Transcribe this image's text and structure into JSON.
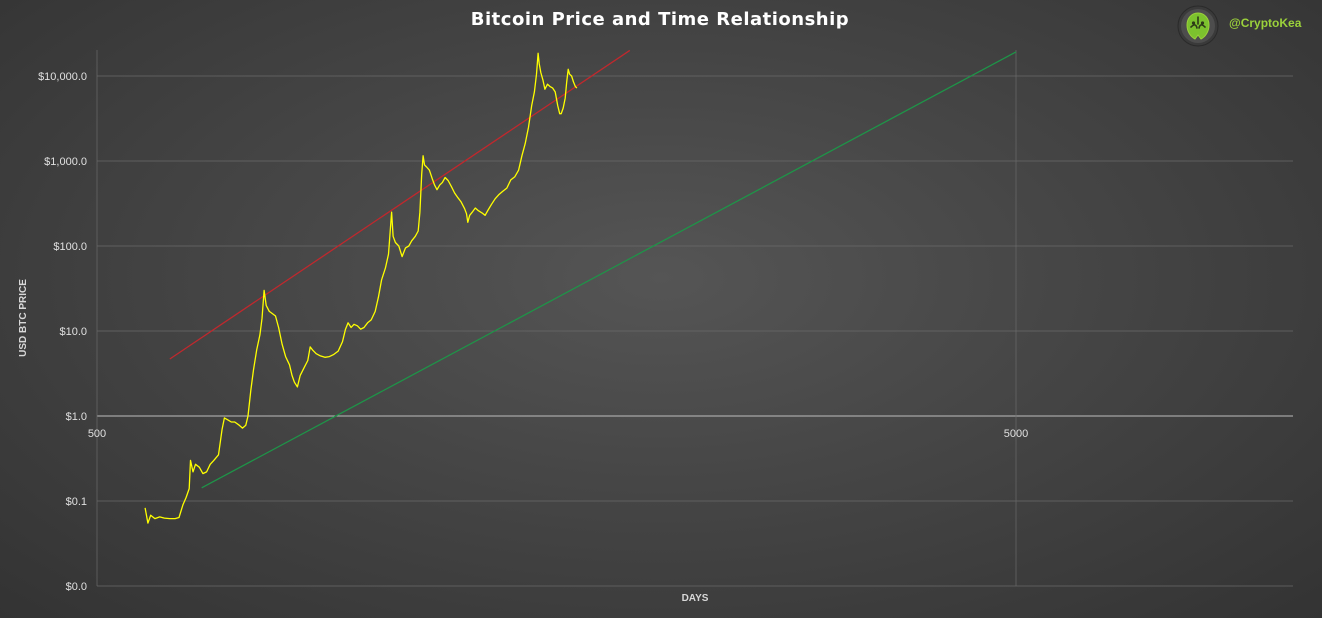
{
  "chart_data": {
    "type": "line",
    "title": "Bitcoin Price and Time Relationship",
    "xlabel": "DAYS",
    "ylabel": "USD BTC PRICE",
    "x_scale": "log",
    "y_scale": "log",
    "x_ticks": [
      {
        "value": 500,
        "label": "500"
      },
      {
        "value": 5000,
        "label": "5000"
      }
    ],
    "y_ticks": [
      {
        "value": 0.01,
        "label": "$0.0"
      },
      {
        "value": 0.1,
        "label": "$0.1"
      },
      {
        "value": 1,
        "label": "$1.0"
      },
      {
        "value": 10,
        "label": "$10.0"
      },
      {
        "value": 100,
        "label": "$100.0"
      },
      {
        "value": 1000,
        "label": "$1,000.0"
      },
      {
        "value": 10000,
        "label": "$10,000.0"
      }
    ],
    "grid": true,
    "series": [
      {
        "color": "#ffff00",
        "points": [
          [
            564,
            0.083
          ],
          [
            568,
            0.055
          ],
          [
            572,
            0.068
          ],
          [
            578,
            0.062
          ],
          [
            585,
            0.065
          ],
          [
            592,
            0.063
          ],
          [
            600,
            0.062
          ],
          [
            608,
            0.062
          ],
          [
            614,
            0.064
          ],
          [
            620,
            0.09
          ],
          [
            625,
            0.11
          ],
          [
            630,
            0.14
          ],
          [
            632,
            0.3
          ],
          [
            636,
            0.22
          ],
          [
            640,
            0.27
          ],
          [
            646,
            0.25
          ],
          [
            652,
            0.21
          ],
          [
            658,
            0.22
          ],
          [
            664,
            0.27
          ],
          [
            670,
            0.3
          ],
          [
            678,
            0.35
          ],
          [
            684,
            0.7
          ],
          [
            688,
            0.95
          ],
          [
            694,
            0.9
          ],
          [
            700,
            0.85
          ],
          [
            706,
            0.85
          ],
          [
            714,
            0.78
          ],
          [
            720,
            0.72
          ],
          [
            726,
            0.78
          ],
          [
            730,
            1.0
          ],
          [
            735,
            2.0
          ],
          [
            740,
            3.5
          ],
          [
            746,
            6.0
          ],
          [
            752,
            9.0
          ],
          [
            756,
            14
          ],
          [
            760,
            30
          ],
          [
            764,
            20
          ],
          [
            770,
            17
          ],
          [
            776,
            16
          ],
          [
            782,
            15
          ],
          [
            788,
            11
          ],
          [
            795,
            7.0
          ],
          [
            802,
            5.0
          ],
          [
            810,
            4.0
          ],
          [
            815,
            3.0
          ],
          [
            820,
            2.5
          ],
          [
            826,
            2.2
          ],
          [
            832,
            3.0
          ],
          [
            840,
            3.7
          ],
          [
            848,
            4.5
          ],
          [
            853,
            6.5
          ],
          [
            858,
            6.0
          ],
          [
            866,
            5.4
          ],
          [
            875,
            5.1
          ],
          [
            885,
            4.9
          ],
          [
            895,
            5.0
          ],
          [
            905,
            5.3
          ],
          [
            915,
            5.8
          ],
          [
            925,
            7.5
          ],
          [
            932,
            10.5
          ],
          [
            938,
            12.5
          ],
          [
            945,
            11.0
          ],
          [
            952,
            12.0
          ],
          [
            960,
            11.5
          ],
          [
            968,
            10.5
          ],
          [
            976,
            11.0
          ],
          [
            985,
            12.5
          ],
          [
            994,
            13.5
          ],
          [
            1004,
            17
          ],
          [
            1012,
            25
          ],
          [
            1020,
            40
          ],
          [
            1030,
            55
          ],
          [
            1038,
            80
          ],
          [
            1043,
            160
          ],
          [
            1046,
            250
          ],
          [
            1050,
            130
          ],
          [
            1056,
            110
          ],
          [
            1065,
            100
          ],
          [
            1074,
            75
          ],
          [
            1083,
            95
          ],
          [
            1092,
            100
          ],
          [
            1100,
            115
          ],
          [
            1110,
            130
          ],
          [
            1118,
            150
          ],
          [
            1123,
            250
          ],
          [
            1128,
            700
          ],
          [
            1132,
            1150
          ],
          [
            1136,
            900
          ],
          [
            1142,
            850
          ],
          [
            1150,
            780
          ],
          [
            1158,
            620
          ],
          [
            1165,
            520
          ],
          [
            1172,
            460
          ],
          [
            1180,
            520
          ],
          [
            1188,
            560
          ],
          [
            1196,
            640
          ],
          [
            1205,
            590
          ],
          [
            1215,
            500
          ],
          [
            1225,
            420
          ],
          [
            1235,
            370
          ],
          [
            1245,
            330
          ],
          [
            1256,
            275
          ],
          [
            1262,
            240
          ],
          [
            1266,
            190
          ],
          [
            1272,
            230
          ],
          [
            1280,
            250
          ],
          [
            1290,
            280
          ],
          [
            1300,
            260
          ],
          [
            1312,
            245
          ],
          [
            1322,
            230
          ],
          [
            1332,
            265
          ],
          [
            1344,
            310
          ],
          [
            1356,
            360
          ],
          [
            1368,
            400
          ],
          [
            1382,
            440
          ],
          [
            1396,
            480
          ],
          [
            1410,
            600
          ],
          [
            1424,
            650
          ],
          [
            1438,
            780
          ],
          [
            1450,
            1150
          ],
          [
            1462,
            1600
          ],
          [
            1474,
            2500
          ],
          [
            1486,
            4500
          ],
          [
            1496,
            6500
          ],
          [
            1504,
            10500
          ],
          [
            1510,
            18500
          ],
          [
            1514,
            14000
          ],
          [
            1520,
            11000
          ],
          [
            1528,
            9000
          ],
          [
            1536,
            7000
          ],
          [
            1546,
            8000
          ],
          [
            1556,
            7500
          ],
          [
            1566,
            7200
          ],
          [
            1576,
            6500
          ],
          [
            1586,
            4500
          ],
          [
            1594,
            3600
          ],
          [
            1600,
            3600
          ],
          [
            1608,
            4200
          ],
          [
            1616,
            5500
          ],
          [
            1622,
            8500
          ],
          [
            1628,
            12000
          ],
          [
            1634,
            10500
          ],
          [
            1642,
            10000
          ],
          [
            1650,
            8500
          ],
          [
            1658,
            7500
          ],
          [
            1664,
            7200
          ]
        ]
      },
      {
        "color": "#c0282d",
        "points": [
          [
            600,
            4.69
          ],
          [
            1900,
            20022
          ]
        ]
      },
      {
        "color": "#1e9448",
        "points": [
          [
            650,
            0.143
          ],
          [
            5000,
            19200
          ]
        ]
      }
    ]
  },
  "brand": {
    "handle": "@CryptoKea",
    "logo_icon": "kea-logo-icon",
    "accent_color": "#9bd13b"
  }
}
